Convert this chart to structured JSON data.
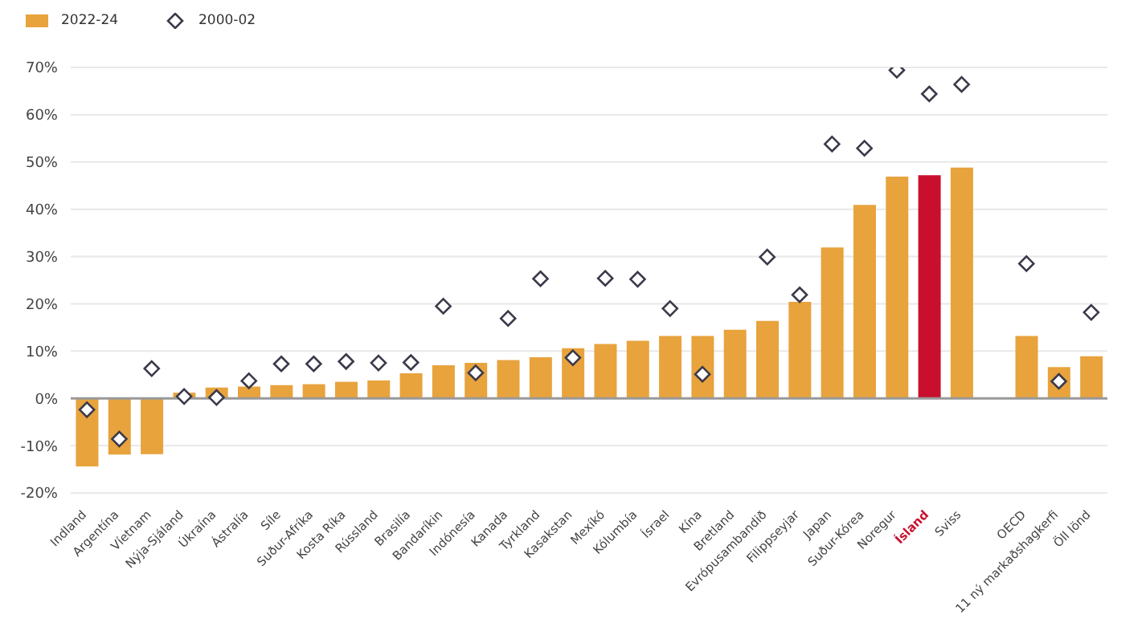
{
  "chart_data": {
    "type": "bar",
    "categories": [
      "Indland",
      "Argentína",
      "Víetnam",
      "Nýja-Sjáland",
      "Úkraína",
      "Ástralía",
      "Síle",
      "Suður-Afríka",
      "Kosta Ríka",
      "Rússland",
      "Brasilía",
      "Bandaríkin",
      "Indónesía",
      "Kanada",
      "Tyrkland",
      "Kasakstan",
      "Mexíkó",
      "Kólumbía",
      "Ísrael",
      "Kína",
      "Bretland",
      "Evrópusambandið",
      "Filippseyjar",
      "Japan",
      "Suður-Kórea",
      "Noregur",
      "Ísland",
      "Sviss",
      null,
      "OECD",
      "11 ný markaðshagkerfi",
      "Öll lönd"
    ],
    "series": [
      {
        "name": "2022-24",
        "color": "#e8a33d",
        "colors": [
          "#e8a33d",
          "#e8a33d",
          "#e8a33d",
          "#e8a33d",
          "#e8a33d",
          "#e8a33d",
          "#e8a33d",
          "#e8a33d",
          "#e8a33d",
          "#e8a33d",
          "#e8a33d",
          "#e8a33d",
          "#e8a33d",
          "#e8a33d",
          "#e8a33d",
          "#e8a33d",
          "#e8a33d",
          "#e8a33d",
          "#e8a33d",
          "#e8a33d",
          "#e8a33d",
          "#e8a33d",
          "#e8a33d",
          "#e8a33d",
          "#e8a33d",
          "#e8a33d",
          "#c8102e",
          "#e8a33d",
          "#e8a33d",
          "#e8a33d",
          "#e8a33d",
          "#e8a33d"
        ],
        "values": [
          -14.4,
          -11.9,
          -11.8,
          1.2,
          2.3,
          2.5,
          2.8,
          3.0,
          3.5,
          3.8,
          5.3,
          7.0,
          7.5,
          8.1,
          8.7,
          10.6,
          11.5,
          12.2,
          13.2,
          13.2,
          14.5,
          16.4,
          20.4,
          31.9,
          40.9,
          46.9,
          47.2,
          48.8,
          null,
          13.2,
          6.6,
          8.9
        ]
      },
      {
        "name": "2000-02",
        "type": "scatter",
        "marker": "diamond",
        "color": "#3a3a4a",
        "values": [
          -2.4,
          -8.6,
          6.3,
          0.4,
          0.2,
          3.7,
          7.3,
          7.3,
          7.8,
          7.5,
          7.6,
          19.5,
          5.4,
          16.9,
          25.3,
          8.6,
          25.4,
          25.2,
          19.0,
          5.1,
          null,
          29.9,
          21.9,
          53.8,
          52.9,
          69.4,
          64.4,
          66.4,
          null,
          28.5,
          3.6,
          18.2
        ]
      }
    ],
    "ylim": [
      -20,
      70
    ],
    "yticks": [
      {
        "value": -20,
        "label": "-20%"
      },
      {
        "value": -10,
        "label": "-10%"
      },
      {
        "value": 0,
        "label": "0%"
      },
      {
        "value": 10,
        "label": "10%"
      },
      {
        "value": 20,
        "label": "20%"
      },
      {
        "value": 30,
        "label": "30%"
      },
      {
        "value": 40,
        "label": "40%"
      },
      {
        "value": 50,
        "label": "50%"
      },
      {
        "value": 60,
        "label": "60%"
      },
      {
        "value": 70,
        "label": "70%"
      }
    ],
    "grid": "y",
    "legend": "top left"
  }
}
